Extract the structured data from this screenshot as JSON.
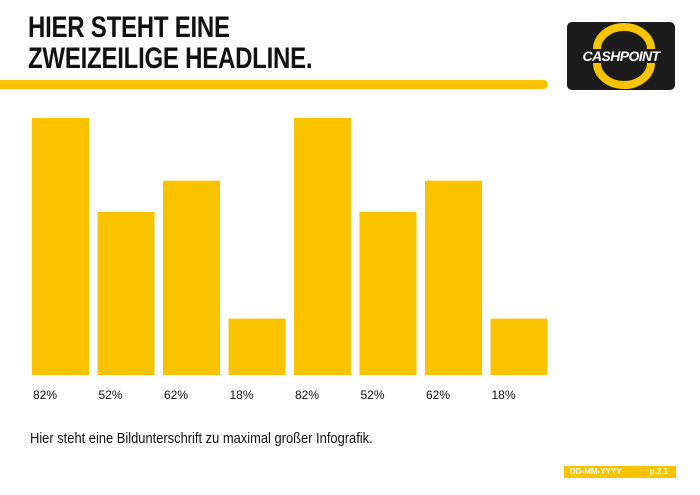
{
  "headline": {
    "line1": "HIER STEHT EINE",
    "line2": "ZWEIZEILIGE HEADLINE."
  },
  "logo": {
    "text": "CASHPOINT",
    "icon": "cashpoint-ring-logo"
  },
  "caption": "Hier steht eine Bildunterschrift zu maximal großer Infografik.",
  "footer": {
    "date": "DD-MM-YYYY",
    "page": "p.2.1"
  },
  "colors": {
    "accent": "#f9c300",
    "text": "#111111",
    "logo_bg": "#1c1c1c"
  },
  "chart_data": {
    "type": "bar",
    "categories": [
      "82%",
      "52%",
      "62%",
      "18%",
      "82%",
      "52%",
      "62%",
      "18%"
    ],
    "values": [
      82,
      52,
      62,
      18,
      82,
      52,
      62,
      18
    ],
    "ylim": [
      0,
      100
    ],
    "grid": false,
    "bar_color": "#f9c300"
  }
}
